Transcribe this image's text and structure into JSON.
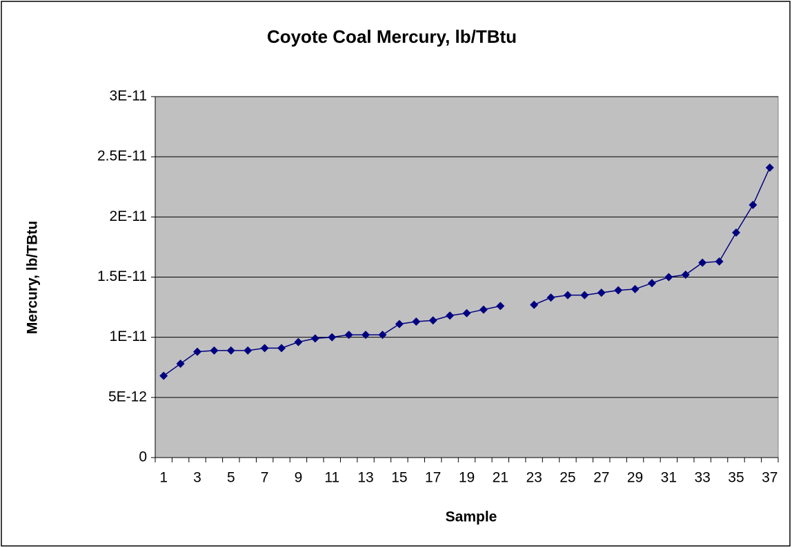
{
  "chart_data": {
    "type": "line",
    "title": "Coyote Coal Mercury, lb/TBtu",
    "x_label": "Sample",
    "y_label": "Mercury, lb/TBtu",
    "categories": [
      "1",
      null,
      "3",
      null,
      "5",
      null,
      "7",
      null,
      "9",
      null,
      "11",
      null,
      "13",
      null,
      "15",
      null,
      "17",
      null,
      "19",
      null,
      "21",
      null,
      "23",
      null,
      "25",
      null,
      "27",
      null,
      "29",
      null,
      "31",
      null,
      "33",
      null,
      "35",
      null,
      "37"
    ],
    "series": [
      {
        "name": "Mercury",
        "color": "#000080",
        "values": [
          6.8e-12,
          7.8e-12,
          8.8e-12,
          8.9e-12,
          8.9e-12,
          8.9e-12,
          9.1e-12,
          9.1e-12,
          9.6e-12,
          9.9e-12,
          1e-11,
          1.02e-11,
          1.02e-11,
          1.02e-11,
          1.11e-11,
          1.13e-11,
          1.14e-11,
          1.18e-11,
          1.2e-11,
          1.23e-11,
          1.26e-11,
          null,
          1.27e-11,
          1.33e-11,
          1.35e-11,
          1.35e-11,
          1.37e-11,
          1.39e-11,
          1.4e-11,
          1.45e-11,
          1.5e-11,
          1.52e-11,
          1.62e-11,
          1.63e-11,
          1.87e-11,
          2.1e-11,
          2.41e-11
        ]
      }
    ],
    "ylim": [
      0,
      3e-11
    ],
    "yticks": [
      0,
      {
        "value": 5e-12,
        "label": "5E-12"
      },
      {
        "value": 1e-11,
        "label": "1E-11"
      },
      {
        "value": 1.5e-11,
        "label": "1.5E-11"
      },
      {
        "value": 2e-11,
        "label": "2E-11"
      },
      {
        "value": 2.5e-11,
        "label": "2.5E-11"
      },
      {
        "value": 3e-11,
        "label": "3E-11"
      }
    ],
    "grid": true,
    "plot_background": "#c0c0c0"
  }
}
